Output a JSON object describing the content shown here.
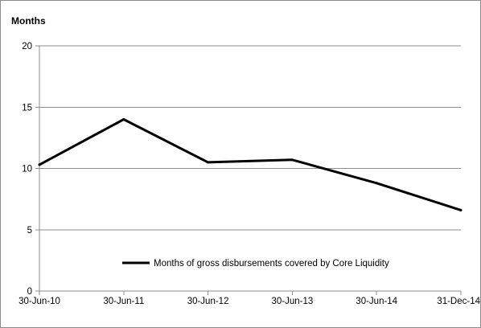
{
  "chart_data": {
    "type": "line",
    "ylabel": "Months",
    "xlabel": "",
    "title": "",
    "ylim": [
      0,
      20
    ],
    "yticks": [
      0,
      5,
      10,
      15,
      20
    ],
    "grid": "horizontal",
    "legend_position": "bottom-center",
    "categories": [
      "30-Jun-10",
      "30-Jun-11",
      "30-Jun-12",
      "30-Jun-13",
      "30-Jun-14",
      "31-Dec-14"
    ],
    "series": [
      {
        "name": "Months of gross disbursements covered by Core Liquidity",
        "color": "#000000",
        "values": [
          10.3,
          14.0,
          10.5,
          10.7,
          8.8,
          6.6
        ]
      }
    ]
  }
}
